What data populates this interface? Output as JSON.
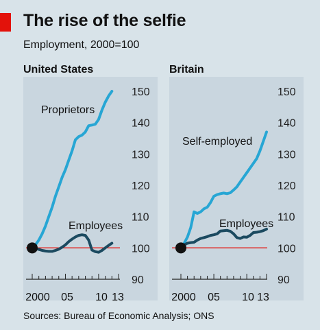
{
  "title": "The rise of the selfie",
  "subtitle": "Employment, 2000=100",
  "source": "Sources: Bureau of Economic Analysis; ONS",
  "colors": {
    "background": "#d8e3e9",
    "light_series": "#27a6d4",
    "dark_series": "#1b4a60",
    "baseline": "#e3120b",
    "accent_tag": "#e3120b"
  },
  "chart_data": [
    {
      "type": "line",
      "title": "United States",
      "ylim": [
        90,
        150
      ],
      "yticks": [
        90,
        100,
        110,
        120,
        130,
        140,
        150
      ],
      "xlim": [
        2000,
        2013
      ],
      "xtick_labels": [
        "2000",
        "05",
        "10",
        "13"
      ],
      "xtick_years": [
        2000,
        2005,
        2010,
        2013
      ],
      "baseline": 100,
      "series": [
        {
          "name": "Proprietors",
          "x": [
            2000,
            2000.5,
            2001,
            2001.5,
            2002,
            2002.5,
            2003,
            2003.5,
            2004,
            2004.5,
            2005,
            2005.5,
            2006,
            2006.5,
            2007,
            2007.5,
            2008,
            2008.5,
            2009,
            2009.5,
            2010,
            2010.5,
            2011,
            2011.5,
            2012
          ],
          "y": [
            100,
            101,
            102.5,
            104.5,
            107,
            110,
            113,
            116.5,
            119.5,
            122.5,
            125,
            128,
            131,
            134.5,
            135.5,
            136,
            137,
            139,
            139.2,
            139.5,
            141,
            144,
            146.5,
            148.5,
            150
          ]
        },
        {
          "name": "Employees",
          "x": [
            2000,
            2000.5,
            2001,
            2001.5,
            2002,
            2002.5,
            2003,
            2003.5,
            2004,
            2004.5,
            2005,
            2005.5,
            2006,
            2006.5,
            2007,
            2007.5,
            2008,
            2008.5,
            2009,
            2009.5,
            2010,
            2010.5,
            2011,
            2011.5,
            2012
          ],
          "y": [
            100,
            99.8,
            99.5,
            99.2,
            99.0,
            98.9,
            98.9,
            99.2,
            99.6,
            100.2,
            101,
            102,
            102.8,
            103.5,
            104.0,
            104.2,
            104.0,
            102.5,
            99.3,
            98.8,
            98.6,
            99.2,
            100.0,
            100.8,
            101.5
          ]
        }
      ]
    },
    {
      "type": "line",
      "title": "Britain",
      "ylim": [
        90,
        150
      ],
      "yticks": [
        90,
        100,
        110,
        120,
        130,
        140,
        150
      ],
      "xlim": [
        2000,
        2013
      ],
      "xtick_labels": [
        "2000",
        "05",
        "10",
        "13"
      ],
      "xtick_years": [
        2000,
        2005,
        2010,
        2013
      ],
      "baseline": 100,
      "series": [
        {
          "name": "Self-employed",
          "x": [
            2000,
            2000.5,
            2001,
            2001.5,
            2002,
            2002.5,
            2003,
            2003.5,
            2004,
            2004.5,
            2005,
            2005.5,
            2006,
            2006.5,
            2007,
            2007.5,
            2008,
            2008.5,
            2009,
            2009.5,
            2010,
            2010.5,
            2011,
            2011.5,
            2012,
            2012.5,
            2013
          ],
          "y": [
            100,
            101.5,
            103.5,
            106.5,
            111.5,
            111.0,
            111.5,
            112.5,
            113,
            114.5,
            116.5,
            117.0,
            117.3,
            117.5,
            117.3,
            117.6,
            118.5,
            119.5,
            121,
            122.5,
            124,
            125.5,
            127,
            128.5,
            131,
            134,
            137
          ]
        },
        {
          "name": "Employees",
          "x": [
            2000,
            2000.5,
            2001,
            2001.5,
            2002,
            2002.5,
            2003,
            2003.5,
            2004,
            2004.5,
            2005,
            2005.5,
            2006,
            2006.5,
            2007,
            2007.5,
            2008,
            2008.5,
            2009,
            2009.5,
            2010,
            2010.5,
            2011,
            2011.5,
            2012,
            2012.5,
            2013
          ],
          "y": [
            100,
            101.0,
            101.5,
            101.7,
            101.8,
            102.5,
            103.0,
            103.3,
            103.6,
            104.0,
            104.2,
            104.5,
            105.4,
            105.5,
            105.6,
            105.3,
            104.5,
            103.3,
            103.0,
            103.5,
            103.4,
            104.0,
            104.9,
            105.0,
            105.2,
            105.5,
            106.0
          ]
        }
      ]
    }
  ]
}
